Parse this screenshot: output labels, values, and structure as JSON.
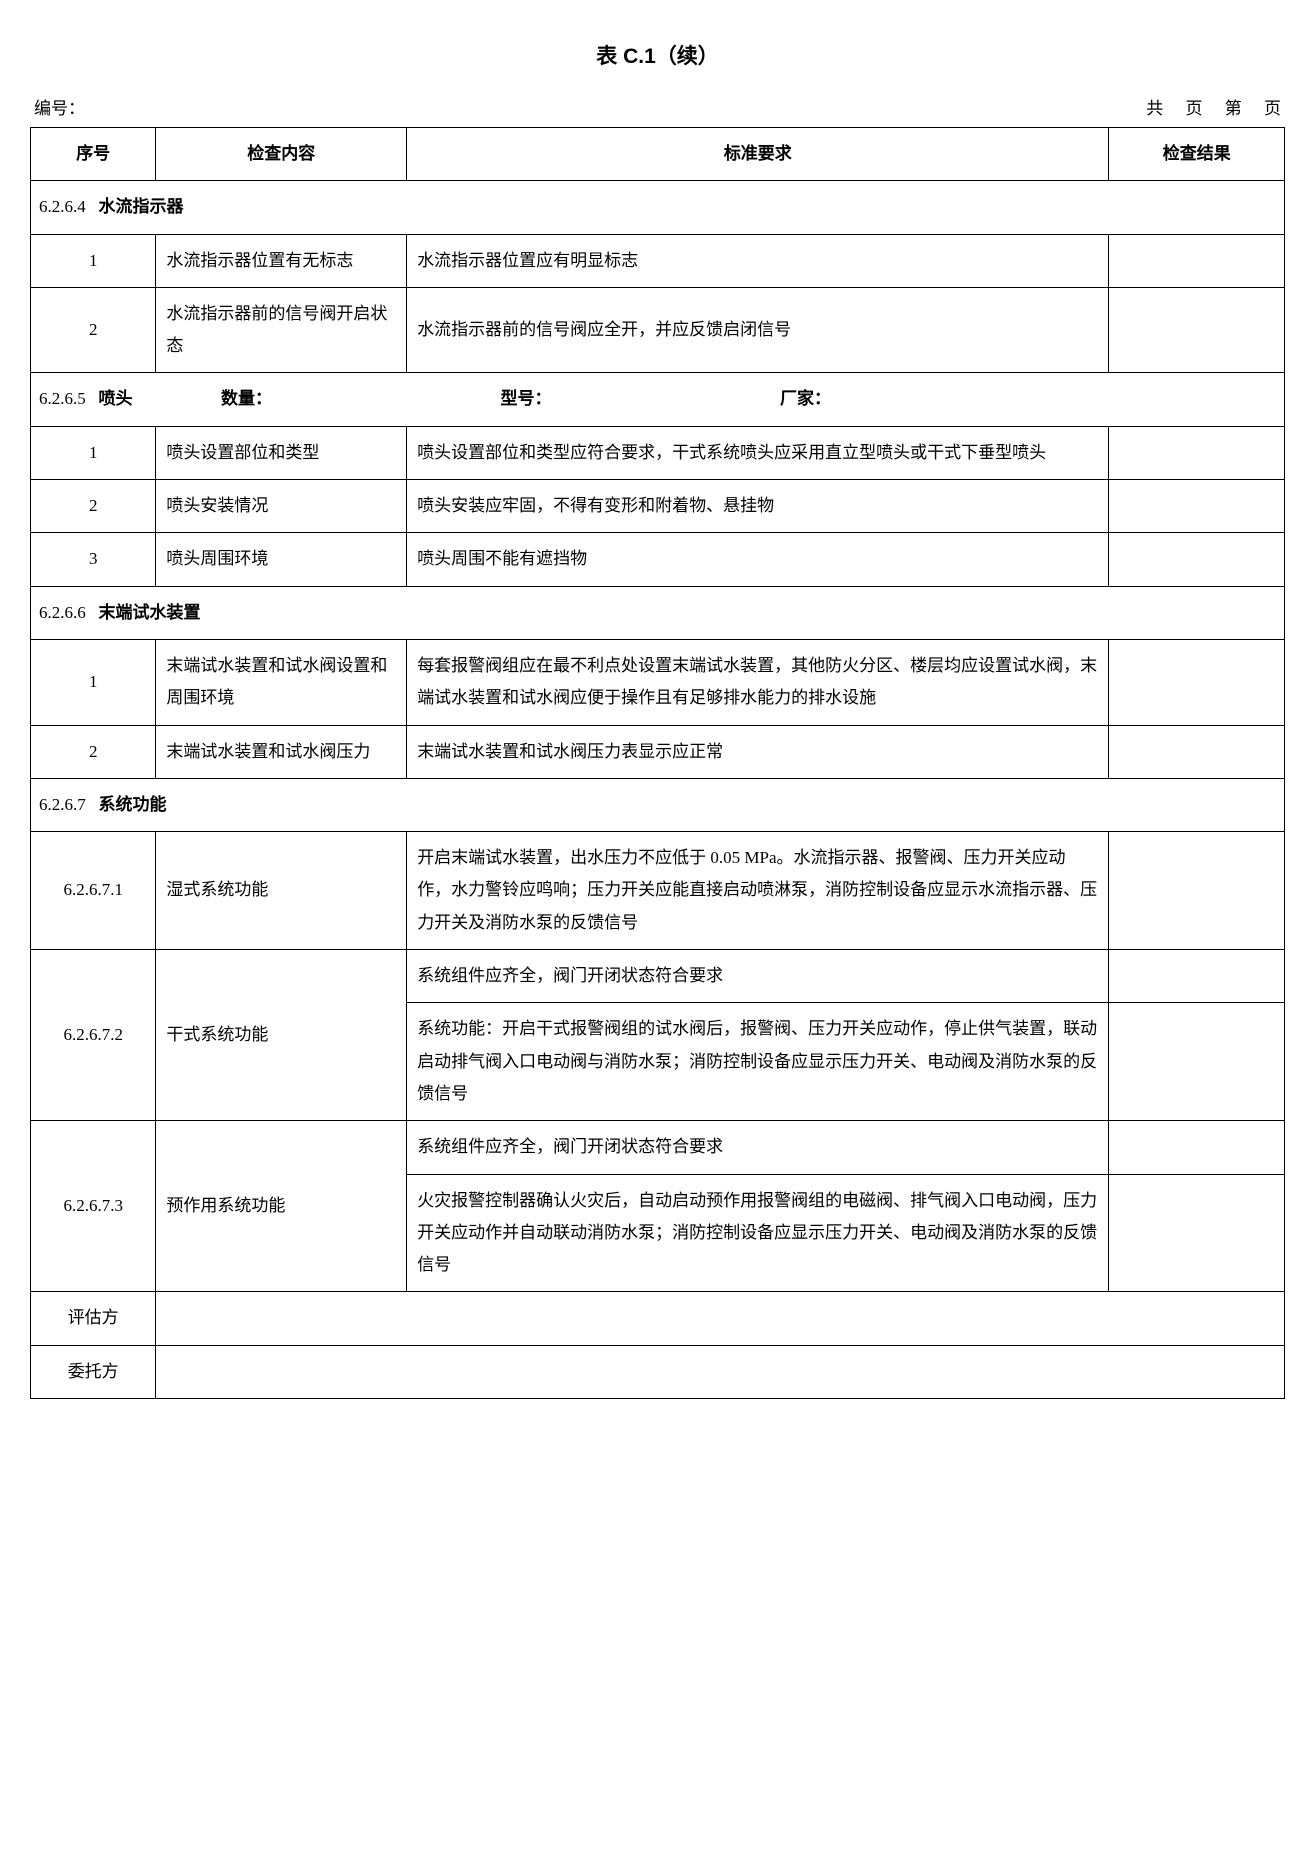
{
  "title": "表 C.1（续）",
  "header": {
    "left": "编号：",
    "right_gong": "共",
    "right_ye1": "页",
    "right_di": "第",
    "right_ye2": "页"
  },
  "cols": {
    "num": "序号",
    "content": "检查内容",
    "req": "标准要求",
    "result": "检查结果"
  },
  "sections": {
    "s6264": {
      "code": "6.2.6.4",
      "title": "水流指示器"
    },
    "s6265": {
      "code": "6.2.6.5",
      "title": "喷头",
      "qty": "数量：",
      "model": "型号：",
      "maker": "厂家："
    },
    "s6266": {
      "code": "6.2.6.6",
      "title": "末端试水装置"
    },
    "s6267": {
      "code": "6.2.6.7",
      "title": "系统功能"
    }
  },
  "rows": {
    "r6264_1": {
      "n": "1",
      "c": "水流指示器位置有无标志",
      "r": "水流指示器位置应有明显标志"
    },
    "r6264_2": {
      "n": "2",
      "c": "水流指示器前的信号阀开启状态",
      "r": "水流指示器前的信号阀应全开，并应反馈启闭信号"
    },
    "r6265_1": {
      "n": "1",
      "c": "喷头设置部位和类型",
      "r": "喷头设置部位和类型应符合要求，干式系统喷头应采用直立型喷头或干式下垂型喷头"
    },
    "r6265_2": {
      "n": "2",
      "c": "喷头安装情况",
      "r": "喷头安装应牢固，不得有变形和附着物、悬挂物"
    },
    "r6265_3": {
      "n": "3",
      "c": "喷头周围环境",
      "r": "喷头周围不能有遮挡物"
    },
    "r6266_1": {
      "n": "1",
      "c": "末端试水装置和试水阀设置和周围环境",
      "r": "每套报警阀组应在最不利点处设置末端试水装置，其他防火分区、楼层均应设置试水阀，末端试水装置和试水阀应便于操作且有足够排水能力的排水设施"
    },
    "r6266_2": {
      "n": "2",
      "c": "末端试水装置和试水阀压力",
      "r": "末端试水装置和试水阀压力表显示应正常"
    },
    "r62671": {
      "n": "6.2.6.7.1",
      "c": "湿式系统功能",
      "r": "开启末端试水装置，出水压力不应低于 0.05 MPa。水流指示器、报警阀、压力开关应动作，水力警铃应鸣响；压力开关应能直接启动喷淋泵，消防控制设备应显示水流指示器、压力开关及消防水泵的反馈信号"
    },
    "r62672": {
      "n": "6.2.6.7.2",
      "c": "干式系统功能",
      "r1": "系统组件应齐全，阀门开闭状态符合要求",
      "r2": "系统功能：开启干式报警阀组的试水阀后，报警阀、压力开关应动作，停止供气装置，联动启动排气阀入口电动阀与消防水泵；消防控制设备应显示压力开关、电动阀及消防水泵的反馈信号"
    },
    "r62673": {
      "n": "6.2.6.7.3",
      "c": "预作用系统功能",
      "r1": "系统组件应齐全，阀门开闭状态符合要求",
      "r2": "火灾报警控制器确认火灾后，自动启动预作用报警阀组的电磁阀、排气阀入口电动阀，压力开关应动作并自动联动消防水泵；消防控制设备应显示压力开关、电动阀及消防水泵的反馈信号"
    }
  },
  "footer": {
    "eval": "评估方",
    "client": "委托方"
  }
}
